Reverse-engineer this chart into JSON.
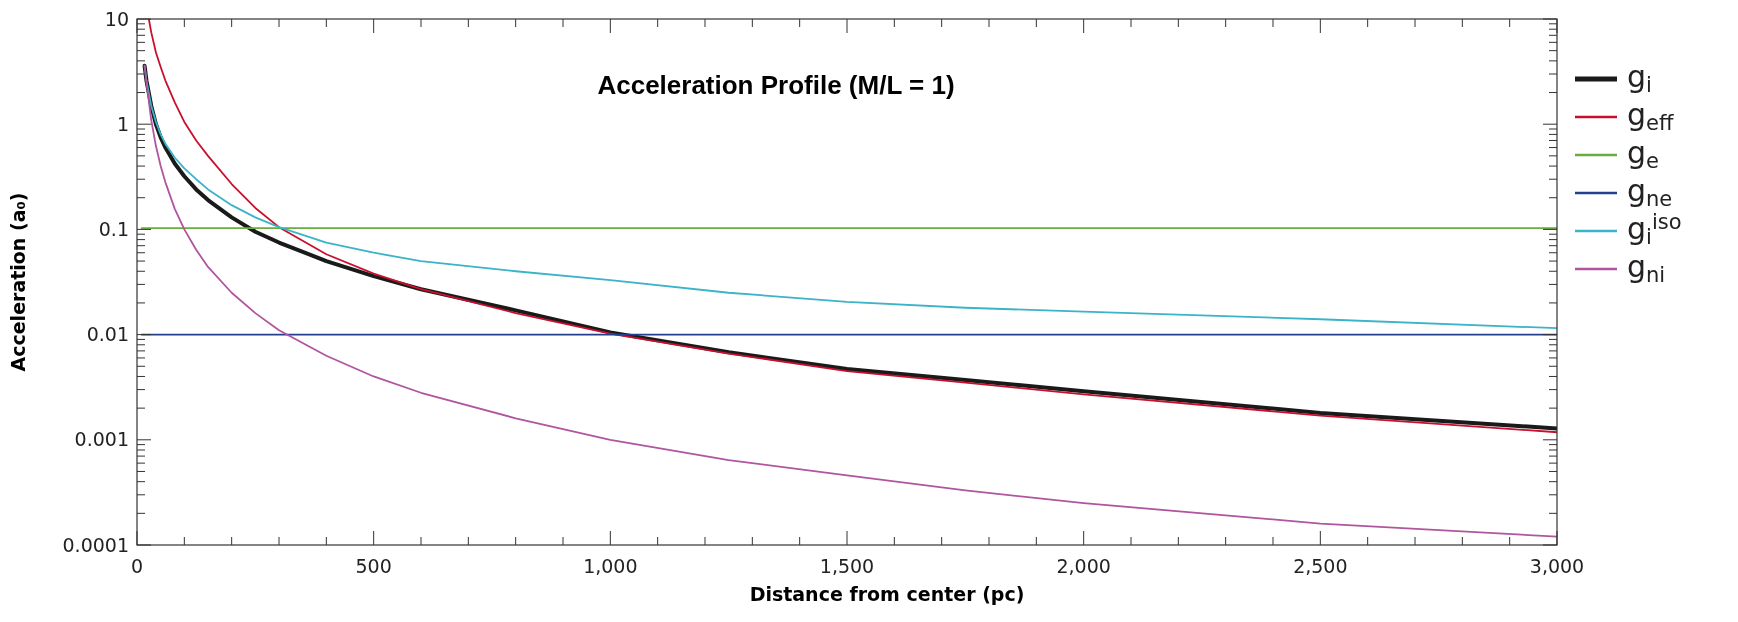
{
  "chart_data": {
    "type": "line",
    "title": "Acceleration Profile (M/L = 1)",
    "xlabel": "Distance from center (pc)",
    "ylabel": "Acceleration (a₀)",
    "log": "y",
    "grid": false,
    "legend": "right",
    "line_style": "solid",
    "xlim": [
      0,
      3000
    ],
    "ylim": [
      0.0001,
      10
    ],
    "xticks": [
      0,
      {
        "value": 100,
        "label": null
      },
      {
        "value": 200,
        "label": null
      },
      {
        "value": 300,
        "label": null
      },
      {
        "value": 400,
        "label": null
      },
      500,
      {
        "value": 600,
        "label": null
      },
      {
        "value": 700,
        "label": null
      },
      {
        "value": 800,
        "label": null
      },
      {
        "value": 900,
        "label": null
      },
      {
        "value": 1000,
        "label": "1,000"
      },
      {
        "value": 1100,
        "label": null
      },
      {
        "value": 1200,
        "label": null
      },
      {
        "value": 1300,
        "label": null
      },
      {
        "value": 1400,
        "label": null
      },
      {
        "value": 1500,
        "label": "1,500"
      },
      {
        "value": 1600,
        "label": null
      },
      {
        "value": 1700,
        "label": null
      },
      {
        "value": 1800,
        "label": null
      },
      {
        "value": 1900,
        "label": null
      },
      {
        "value": 2000,
        "label": "2,000"
      },
      {
        "value": 2100,
        "label": null
      },
      {
        "value": 2200,
        "label": null
      },
      {
        "value": 2300,
        "label": null
      },
      {
        "value": 2400,
        "label": null
      },
      {
        "value": 2500,
        "label": "2,500"
      },
      {
        "value": 2600,
        "label": null
      },
      {
        "value": 2700,
        "label": null
      },
      {
        "value": 2800,
        "label": null
      },
      {
        "value": 2900,
        "label": null
      },
      {
        "value": 3000,
        "label": "3,000"
      }
    ],
    "yticks": [
      0.0001,
      {
        "value": 0.0002,
        "label": null
      },
      {
        "value": 0.0003,
        "label": null
      },
      {
        "value": 0.0004,
        "label": null
      },
      {
        "value": 0.0005,
        "label": null
      },
      {
        "value": 0.0006,
        "label": null
      },
      {
        "value": 0.0007,
        "label": null
      },
      {
        "value": 0.0008,
        "label": null
      },
      {
        "value": 0.0009,
        "label": null
      },
      0.001,
      {
        "value": 0.002,
        "label": null
      },
      {
        "value": 0.003,
        "label": null
      },
      {
        "value": 0.004,
        "label": null
      },
      {
        "value": 0.005,
        "label": null
      },
      {
        "value": 0.006,
        "label": null
      },
      {
        "value": 0.007,
        "label": null
      },
      {
        "value": 0.008,
        "label": null
      },
      {
        "value": 0.009,
        "label": null
      },
      0.01,
      {
        "value": 0.02,
        "label": null
      },
      {
        "value": 0.03,
        "label": null
      },
      {
        "value": 0.04,
        "label": null
      },
      {
        "value": 0.05,
        "label": null
      },
      {
        "value": 0.06,
        "label": null
      },
      {
        "value": 0.07,
        "label": null
      },
      {
        "value": 0.08,
        "label": null
      },
      {
        "value": 0.09,
        "label": null
      },
      0.1,
      {
        "value": 0.2,
        "label": null
      },
      {
        "value": 0.3,
        "label": null
      },
      {
        "value": 0.4,
        "label": null
      },
      {
        "value": 0.5,
        "label": null
      },
      {
        "value": 0.6,
        "label": null
      },
      {
        "value": 0.7,
        "label": null
      },
      {
        "value": 0.8,
        "label": null
      },
      {
        "value": 0.9,
        "label": null
      },
      1,
      {
        "value": 2,
        "label": null
      },
      {
        "value": 3,
        "label": null
      },
      {
        "value": 4,
        "label": null
      },
      {
        "value": 5,
        "label": null
      },
      {
        "value": 6,
        "label": null
      },
      {
        "value": 7,
        "label": null
      },
      {
        "value": 8,
        "label": null
      },
      {
        "value": 9,
        "label": null
      },
      10
    ],
    "series": [
      {
        "name": "g$_{i}$",
        "color": "#1a1a1a",
        "x": [
          16,
          20,
          30,
          40,
          50,
          60,
          80,
          100,
          125,
          150,
          200,
          250,
          300,
          400,
          500,
          600,
          800,
          1000,
          1250,
          1500,
          1750,
          2000,
          2500,
          3000
        ],
        "values": [
          3.6,
          2.6,
          1.5,
          1.0,
          0.75,
          0.6,
          0.42,
          0.32,
          0.24,
          0.19,
          0.13,
          0.095,
          0.075,
          0.05,
          0.036,
          0.027,
          0.017,
          0.0105,
          0.0068,
          0.0047,
          0.0037,
          0.0029,
          0.0018,
          0.00128
        ]
      },
      {
        "name": "g$_{eff}$",
        "color": "#c8102e",
        "x": [
          25,
          30,
          40,
          50,
          60,
          80,
          100,
          125,
          150,
          200,
          250,
          300,
          400,
          500,
          600,
          800,
          1000,
          1250,
          1500,
          1750,
          2000,
          2500,
          3000
        ],
        "values": [
          10,
          7.5,
          4.8,
          3.5,
          2.6,
          1.6,
          1.05,
          0.7,
          0.5,
          0.27,
          0.16,
          0.105,
          0.058,
          0.038,
          0.027,
          0.016,
          0.0102,
          0.0066,
          0.0045,
          0.0035,
          0.0027,
          0.0017,
          0.00118
        ]
      },
      {
        "name": "g$_{e}$",
        "color": "#6aad3d",
        "x": [
          10,
          3000
        ],
        "values": [
          0.103,
          0.103
        ]
      },
      {
        "name": "g$_{ne}$",
        "color": "#23408e",
        "x": [
          10,
          3000
        ],
        "values": [
          0.01,
          0.01
        ]
      },
      {
        "name": "g$_{i}$$^{iso}$",
        "color": "#3bb3c8",
        "x": [
          16,
          20,
          30,
          40,
          50,
          60,
          80,
          100,
          125,
          150,
          200,
          250,
          300,
          400,
          500,
          600,
          800,
          1000,
          1250,
          1500,
          1750,
          2000,
          2500,
          3000
        ],
        "values": [
          3.6,
          2.6,
          1.5,
          1.05,
          0.8,
          0.65,
          0.48,
          0.38,
          0.3,
          0.24,
          0.17,
          0.13,
          0.105,
          0.075,
          0.06,
          0.05,
          0.04,
          0.033,
          0.025,
          0.0205,
          0.018,
          0.0165,
          0.014,
          0.0115
        ]
      },
      {
        "name": "g$_{ni}$",
        "color": "#b0559f",
        "x": [
          16,
          20,
          30,
          40,
          50,
          60,
          80,
          100,
          125,
          150,
          200,
          250,
          300,
          400,
          500,
          600,
          800,
          1000,
          1250,
          1500,
          1750,
          2000,
          2500,
          3000
        ],
        "values": [
          3.6,
          2.5,
          1.1,
          0.62,
          0.4,
          0.28,
          0.156,
          0.1,
          0.064,
          0.044,
          0.025,
          0.016,
          0.011,
          0.0063,
          0.004,
          0.0028,
          0.0016,
          0.001,
          0.00064,
          0.00046,
          0.00033,
          0.00025,
          0.00016,
          0.00012
        ]
      }
    ]
  }
}
